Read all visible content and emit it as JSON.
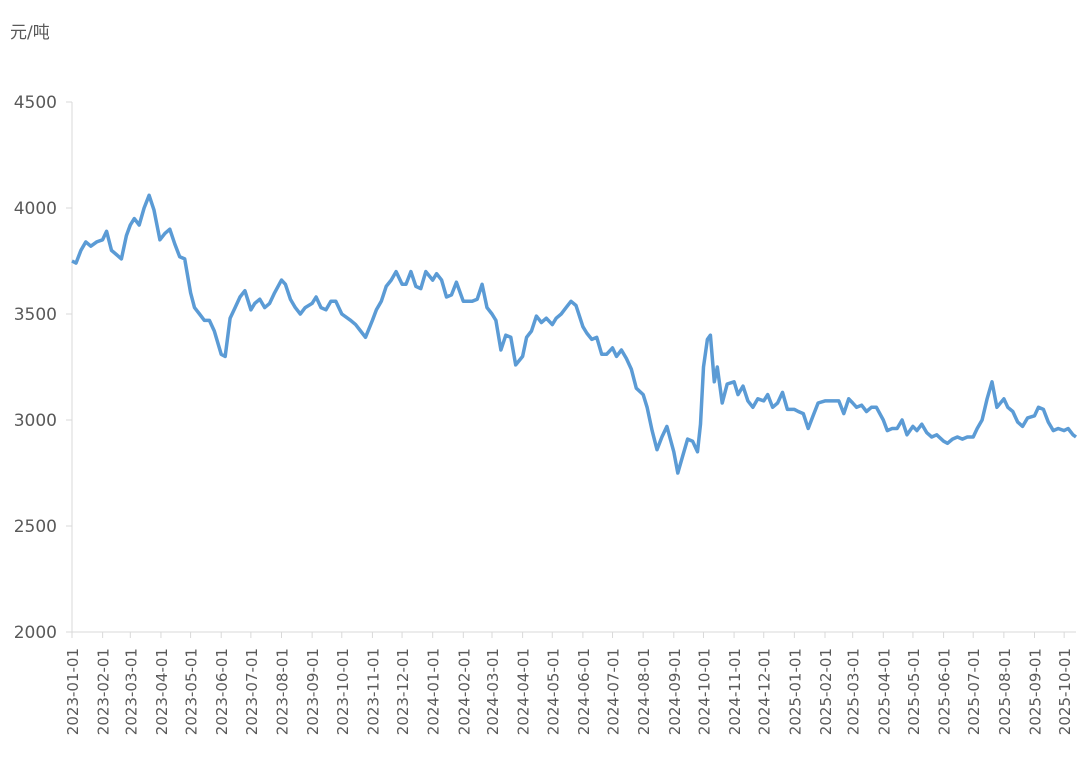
{
  "chart_data": {
    "type": "line",
    "y_label": "元/吨",
    "xlim": [
      "2023-01-01",
      "2025-10-13"
    ],
    "xticks": [
      "2023-01-01",
      "2023-02-01",
      "2023-03-01",
      "2023-04-01",
      "2023-05-01",
      "2023-06-01",
      "2023-07-01",
      "2023-08-01",
      "2023-09-01",
      "2023-10-01",
      "2023-11-01",
      "2023-12-01",
      "2024-01-01",
      "2024-02-01",
      "2024-03-01",
      "2024-04-01",
      "2024-05-01",
      "2024-06-01",
      "2024-07-01",
      "2024-08-01",
      "2024-09-01",
      "2024-10-01",
      "2024-11-01",
      "2024-12-01",
      "2025-01-01",
      "2025-02-01",
      "2025-03-01",
      "2025-04-01",
      "2025-05-01",
      "2025-06-01",
      "2025-07-01",
      "2025-08-01",
      "2025-09-01",
      "2025-10-01"
    ],
    "ylim": [
      2000,
      4500
    ],
    "yticks": [
      2000,
      2500,
      3000,
      3500,
      4000,
      4500
    ],
    "series": [
      {
        "color": "#5b9bd5",
        "x": [
          "2023-01-01",
          "2023-01-05",
          "2023-01-10",
          "2023-01-15",
          "2023-01-20",
          "2023-01-26",
          "2023-02-01",
          "2023-02-05",
          "2023-02-10",
          "2023-02-15",
          "2023-02-20",
          "2023-02-25",
          "2023-03-01",
          "2023-03-05",
          "2023-03-10",
          "2023-03-15",
          "2023-03-20",
          "2023-03-25",
          "2023-03-31",
          "2023-04-05",
          "2023-04-10",
          "2023-04-15",
          "2023-04-20",
          "2023-04-25",
          "2023-05-01",
          "2023-05-05",
          "2023-05-10",
          "2023-05-15",
          "2023-05-20",
          "2023-05-25",
          "2023-06-01",
          "2023-06-05",
          "2023-06-10",
          "2023-06-15",
          "2023-06-20",
          "2023-06-25",
          "2023-07-01",
          "2023-07-05",
          "2023-07-10",
          "2023-07-15",
          "2023-07-20",
          "2023-07-25",
          "2023-08-01",
          "2023-08-05",
          "2023-08-10",
          "2023-08-15",
          "2023-08-20",
          "2023-08-25",
          "2023-09-01",
          "2023-09-05",
          "2023-09-10",
          "2023-09-15",
          "2023-09-20",
          "2023-09-25",
          "2023-10-01",
          "2023-10-10",
          "2023-10-15",
          "2023-10-20",
          "2023-10-25",
          "2023-11-01",
          "2023-11-05",
          "2023-11-10",
          "2023-11-15",
          "2023-11-20",
          "2023-11-25",
          "2023-12-01",
          "2023-12-05",
          "2023-12-10",
          "2023-12-15",
          "2023-12-20",
          "2023-12-25",
          "2024-01-01",
          "2024-01-05",
          "2024-01-10",
          "2024-01-15",
          "2024-01-20",
          "2024-01-25",
          "2024-02-01",
          "2024-02-10",
          "2024-02-15",
          "2024-02-20",
          "2024-02-25",
          "2024-03-01",
          "2024-03-05",
          "2024-03-10",
          "2024-03-15",
          "2024-03-20",
          "2024-03-25",
          "2024-04-01",
          "2024-04-05",
          "2024-04-10",
          "2024-04-15",
          "2024-04-20",
          "2024-04-25",
          "2024-05-01",
          "2024-05-05",
          "2024-05-10",
          "2024-05-15",
          "2024-05-20",
          "2024-05-25",
          "2024-06-01",
          "2024-06-05",
          "2024-06-10",
          "2024-06-15",
          "2024-06-20",
          "2024-06-25",
          "2024-07-01",
          "2024-07-05",
          "2024-07-10",
          "2024-07-15",
          "2024-07-20",
          "2024-07-25",
          "2024-08-01",
          "2024-08-05",
          "2024-08-10",
          "2024-08-15",
          "2024-08-20",
          "2024-08-25",
          "2024-09-01",
          "2024-09-05",
          "2024-09-10",
          "2024-09-15",
          "2024-09-20",
          "2024-09-25",
          "2024-09-28",
          "2024-10-01",
          "2024-10-05",
          "2024-10-08",
          "2024-10-12",
          "2024-10-15",
          "2024-10-20",
          "2024-10-25",
          "2024-11-01",
          "2024-11-05",
          "2024-11-10",
          "2024-11-15",
          "2024-11-20",
          "2024-11-25",
          "2024-12-01",
          "2024-12-05",
          "2024-12-10",
          "2024-12-15",
          "2024-12-20",
          "2024-12-25",
          "2025-01-01",
          "2025-01-05",
          "2025-01-10",
          "2025-01-15",
          "2025-01-20",
          "2025-01-25",
          "2025-02-01",
          "2025-02-10",
          "2025-02-15",
          "2025-02-20",
          "2025-02-25",
          "2025-03-01",
          "2025-03-05",
          "2025-03-10",
          "2025-03-15",
          "2025-03-20",
          "2025-03-25",
          "2025-04-01",
          "2025-04-05",
          "2025-04-10",
          "2025-04-15",
          "2025-04-20",
          "2025-04-25",
          "2025-05-01",
          "2025-05-05",
          "2025-05-10",
          "2025-05-15",
          "2025-05-20",
          "2025-05-25",
          "2025-06-01",
          "2025-06-05",
          "2025-06-10",
          "2025-06-15",
          "2025-06-20",
          "2025-06-25",
          "2025-07-01",
          "2025-07-05",
          "2025-07-10",
          "2025-07-15",
          "2025-07-20",
          "2025-07-25",
          "2025-08-01",
          "2025-08-05",
          "2025-08-10",
          "2025-08-15",
          "2025-08-20",
          "2025-08-25",
          "2025-09-01",
          "2025-09-05",
          "2025-09-10",
          "2025-09-15",
          "2025-09-20",
          "2025-09-25",
          "2025-10-01",
          "2025-10-05",
          "2025-10-10",
          "2025-10-13"
        ],
        "values": [
          3750,
          3740,
          3800,
          3840,
          3820,
          3840,
          3850,
          3890,
          3800,
          3780,
          3760,
          3870,
          3920,
          3950,
          3920,
          4000,
          4060,
          3990,
          3850,
          3880,
          3900,
          3830,
          3770,
          3760,
          3600,
          3530,
          3500,
          3470,
          3470,
          3420,
          3310,
          3300,
          3480,
          3530,
          3580,
          3610,
          3520,
          3550,
          3570,
          3530,
          3550,
          3600,
          3660,
          3640,
          3570,
          3530,
          3500,
          3530,
          3550,
          3580,
          3530,
          3520,
          3560,
          3560,
          3500,
          3470,
          3450,
          3420,
          3390,
          3470,
          3520,
          3560,
          3630,
          3660,
          3700,
          3640,
          3640,
          3700,
          3630,
          3620,
          3700,
          3660,
          3690,
          3660,
          3580,
          3590,
          3650,
          3560,
          3560,
          3570,
          3640,
          3530,
          3500,
          3470,
          3330,
          3400,
          3390,
          3260,
          3300,
          3390,
          3420,
          3490,
          3460,
          3480,
          3450,
          3480,
          3500,
          3530,
          3560,
          3540,
          3440,
          3410,
          3380,
          3390,
          3310,
          3310,
          3340,
          3300,
          3330,
          3290,
          3240,
          3150,
          3120,
          3060,
          2950,
          2860,
          2920,
          2970,
          2850,
          2750,
          2830,
          2910,
          2900,
          2850,
          2980,
          3250,
          3380,
          3400,
          3180,
          3250,
          3080,
          3170,
          3180,
          3120,
          3160,
          3090,
          3060,
          3100,
          3090,
          3120,
          3060,
          3080,
          3130,
          3050,
          3050,
          3040,
          3030,
          2960,
          3020,
          3080,
          3090,
          3090,
          3090,
          3030,
          3100,
          3080,
          3060,
          3070,
          3040,
          3060,
          3060,
          3000,
          2950,
          2960,
          2960,
          3000,
          2930,
          2970,
          2950,
          2980,
          2940,
          2920,
          2930,
          2900,
          2890,
          2910,
          2920,
          2910,
          2920,
          2920,
          2960,
          3000,
          3100,
          3180,
          3060,
          3100,
          3060,
          3040,
          2990,
          2970,
          3010,
          3020,
          3060,
          3050,
          2990,
          2950,
          2960,
          2950,
          2960,
          2930,
          2920
        ]
      }
    ]
  }
}
